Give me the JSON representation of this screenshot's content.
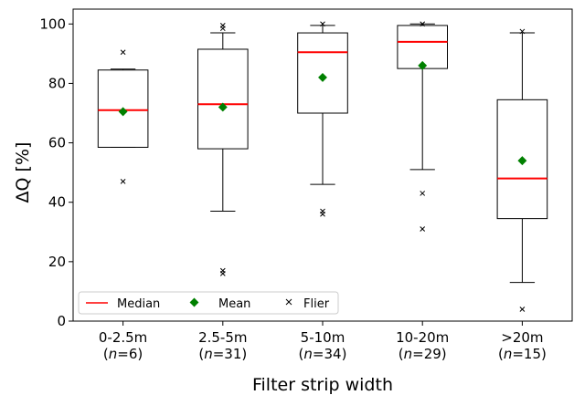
{
  "chart_data": {
    "type": "boxplot",
    "xlabel": "Filter strip width",
    "ylabel": "ΔQ [%]",
    "ylim": [
      0,
      105
    ],
    "yticks": [
      0,
      20,
      40,
      60,
      80,
      100
    ],
    "grid": false,
    "legend_position": "bottom-left",
    "legend": [
      {
        "label": "Median",
        "marker": "line",
        "color": "#ff0000"
      },
      {
        "label": "Mean",
        "marker": "diamond",
        "color": "#008000"
      },
      {
        "label": "Flier",
        "marker": "x",
        "color": "#000000"
      }
    ],
    "categories": [
      {
        "label": "0-2.5m",
        "n_label": "(n=6)",
        "n": 6
      },
      {
        "label": "2.5-5m",
        "n_label": "(n=31)",
        "n": 31
      },
      {
        "label": "5-10m",
        "n_label": "(n=34)",
        "n": 34
      },
      {
        "label": "10-20m",
        "n_label": "(n=29)",
        "n": 29
      },
      {
        "label": ">20m",
        "n_label": "(n=15)",
        "n": 15
      }
    ],
    "boxes": [
      {
        "whislo": 58.5,
        "q1": 58.5,
        "median": 71,
        "q3": 84.5,
        "whishi": 84.8,
        "mean": 70.5,
        "fliers": [
          90.5,
          47
        ]
      },
      {
        "whislo": 37,
        "q1": 58,
        "median": 73,
        "q3": 91.5,
        "whishi": 97,
        "mean": 72,
        "fliers": [
          99.5,
          98.5,
          17,
          16
        ]
      },
      {
        "whislo": 46,
        "q1": 70,
        "median": 90.5,
        "q3": 97,
        "whishi": 99.5,
        "mean": 82,
        "fliers": [
          100,
          37,
          36
        ]
      },
      {
        "whislo": 51,
        "q1": 85,
        "median": 94,
        "q3": 99.5,
        "whishi": 100,
        "mean": 86,
        "fliers": [
          100,
          43,
          31
        ]
      },
      {
        "whislo": 13,
        "q1": 34.5,
        "median": 48,
        "q3": 74.5,
        "whishi": 97,
        "mean": 54,
        "fliers": [
          97.5,
          4
        ]
      }
    ],
    "colors": {
      "median": "#ff0000",
      "mean": "#008000",
      "box": "#000000",
      "flier": "#000000"
    }
  }
}
